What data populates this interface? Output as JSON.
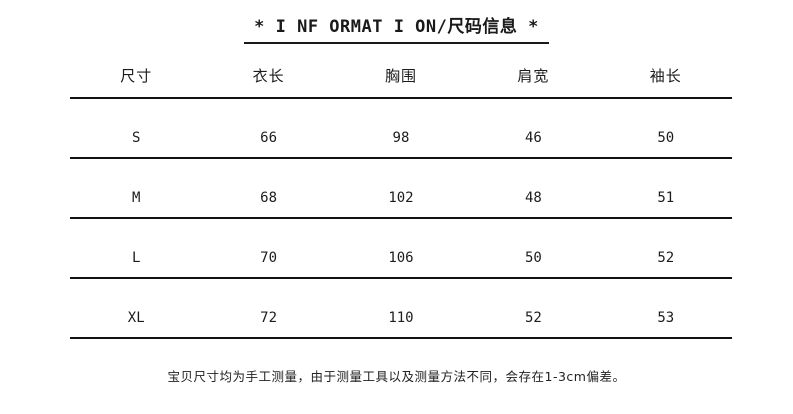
{
  "title": "* I NF ORMAT I ON/尺码信息 *",
  "table": {
    "headers": [
      "尺寸",
      "衣长",
      "胸围",
      "肩宽",
      "袖长"
    ],
    "rows": [
      [
        "S",
        "66",
        "98",
        "46",
        "50"
      ],
      [
        "M",
        "68",
        "102",
        "48",
        "51"
      ],
      [
        "L",
        "70",
        "106",
        "50",
        "52"
      ],
      [
        "XL",
        "72",
        "110",
        "52",
        "53"
      ]
    ]
  },
  "footer_note": "宝贝尺寸均为手工测量，由于测量工具以及测量方法不同，会存在1-3cm偏差。",
  "colors": {
    "background": "#ffffff",
    "text": "#1c1c1c",
    "rule_line": "#111111"
  },
  "chart_data": {
    "type": "table",
    "title": "* I NF ORMAT I ON/尺码信息 *",
    "columns": [
      "尺寸",
      "衣长",
      "胸围",
      "肩宽",
      "袖长"
    ],
    "rows": [
      {
        "尺寸": "S",
        "衣长": 66,
        "胸围": 98,
        "肩宽": 46,
        "袖长": 50
      },
      {
        "尺寸": "M",
        "衣长": 68,
        "胸围": 102,
        "肩宽": 48,
        "袖长": 51
      },
      {
        "尺寸": "L",
        "衣长": 70,
        "胸围": 106,
        "肩宽": 50,
        "袖长": 52
      },
      {
        "尺寸": "XL",
        "衣长": 72,
        "胸围": 110,
        "肩宽": 52,
        "袖长": 53
      }
    ],
    "note": "宝贝尺寸均为手工测量，由于测量工具以及测量方法不同，会存在1-3cm偏差。",
    "layout": {
      "grid": "horizontal-rules-only",
      "header_align": "center",
      "cell_align": "center"
    }
  }
}
